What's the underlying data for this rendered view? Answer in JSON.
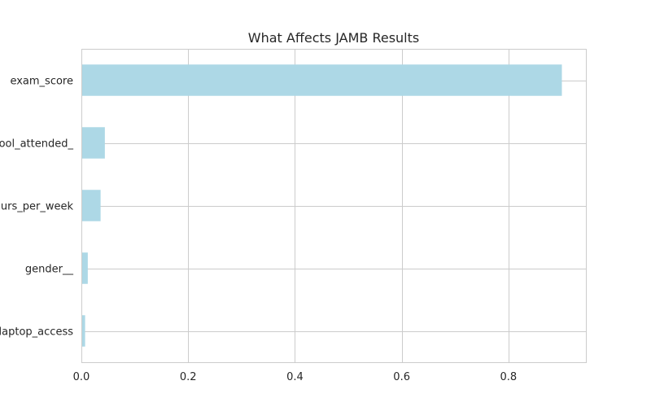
{
  "chart_data": {
    "type": "bar",
    "orientation": "horizontal",
    "title": "What Affects JAMB Results",
    "xlabel": "",
    "ylabel": "",
    "categories": [
      "exam_score",
      "school_attended_",
      "hours_per_week",
      "gender__",
      "laptop_access"
    ],
    "values": [
      0.9,
      0.044,
      0.036,
      0.012,
      0.007
    ],
    "xlim": [
      0,
      0.945
    ],
    "xticks": [
      0.0,
      0.2,
      0.4,
      0.6,
      0.8
    ],
    "xtick_labels": [
      "0.0",
      "0.2",
      "0.4",
      "0.6",
      "0.8"
    ],
    "grid": true,
    "legend": "none",
    "colors": {
      "bar": "#add8e6",
      "grid": "#cccccc",
      "text": "#262626"
    }
  }
}
